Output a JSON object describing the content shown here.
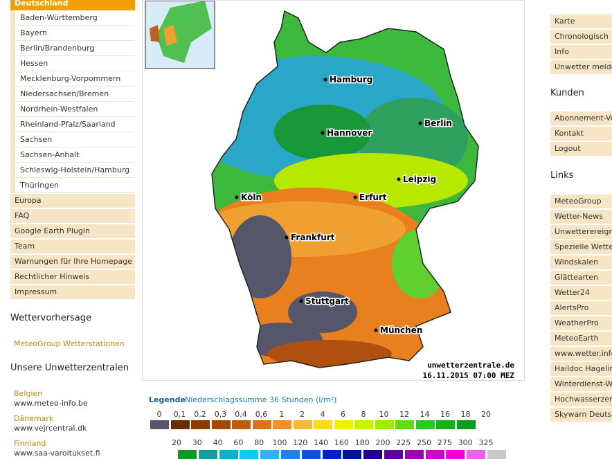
{
  "nav": {
    "header": "Deutschland",
    "states": [
      "Baden-Württemberg",
      "Bayern",
      "Berlin/Brandenburg",
      "Hessen",
      "Mecklenburg-Vorpommern",
      "Niedersachsen/Bremen",
      "Nordrhein-Westfalen",
      "Rheinland-Pfalz/Saarland",
      "Sachsen",
      "Sachsen-Anhalt",
      "Schleswig-Holstein/Hamburg",
      "Thüringen"
    ],
    "items": [
      "Europa",
      "FAQ",
      "Google Earth Plugin",
      "Team",
      "Warnungen für Ihre Homepage",
      "Rechtlicher Hinweis",
      "Impressum"
    ]
  },
  "left_sections": {
    "forecast_heading": "Wettervorhersage",
    "forecast_link": "MeteoGroup Wetterstationen",
    "centers_heading": "Unsere Unwetterzentralen",
    "centers": [
      {
        "country": "Belgien",
        "url": "www.meteo-info.be"
      },
      {
        "country": "Dänemark",
        "url": "www.vejrcentral.dk"
      },
      {
        "country": "Finnland",
        "url": "www.saa-varoitukset.fi"
      }
    ]
  },
  "map": {
    "cities": [
      "Hamburg",
      "Berlin",
      "Hannover",
      "Leipzig",
      "Köln",
      "Erfurt",
      "Frankfurt",
      "Stuttgart",
      "München"
    ],
    "source": "unwetterzentrale.de",
    "timestamp": "16.11.2015 07:00 MEZ"
  },
  "legend": {
    "title": "Legende",
    "subtitle": "Niederschlagssumme 36 Stunden  (l/m²)",
    "row1": {
      "labels": [
        "0",
        "0,1",
        "0,2",
        "0,3",
        "0,4",
        "0,6",
        "1",
        "2",
        "4",
        "6",
        "8",
        "10",
        "12",
        "14",
        "16",
        "18",
        "20"
      ],
      "colors": [
        "#55566a",
        "#6b2c00",
        "#8b3a00",
        "#a34800",
        "#c05c08",
        "#dc7418",
        "#f09028",
        "#f8b838",
        "#f8dc10",
        "#f0f000",
        "#c8f000",
        "#a0ec00",
        "#60e000",
        "#20d020",
        "#18b018",
        "#0c9a20"
      ]
    },
    "row2": {
      "labels": [
        "20",
        "30",
        "40",
        "60",
        "80",
        "100",
        "120",
        "140",
        "160",
        "180",
        "200",
        "225",
        "250",
        "275",
        "300",
        "325"
      ],
      "colors": [
        "#0c9a20",
        "#10a0a0",
        "#00b4d0",
        "#10c8f0",
        "#30b0f8",
        "#2080f0",
        "#1050e0",
        "#0020d0",
        "#0010a0",
        "#200090",
        "#6000a0",
        "#a000b0",
        "#d000c8",
        "#f000e0",
        "#f060f0",
        "#c8c8c8"
      ]
    }
  },
  "sidebar": {
    "menu": [
      "Karte",
      "Chronologisch",
      "Info",
      "Unwetter melden"
    ],
    "customers_heading": "Kunden",
    "customers": [
      "Abonnement-Ver",
      "Kontakt",
      "Logout"
    ],
    "links_heading": "Links",
    "links": [
      "MeteoGroup",
      "Wetter-News",
      "Unwetterereignis",
      "Spezielle Wetterla",
      "Windskalen",
      "Glättearten",
      "Wetter24",
      "AlertsPro",
      "WeatherPro",
      "MeteoEarth",
      "www.wetter.info",
      "Haildoc Hagelinfo",
      "Winterdienst-Wet",
      "Hochwasserzent",
      "Skywarn Deutsch"
    ]
  }
}
